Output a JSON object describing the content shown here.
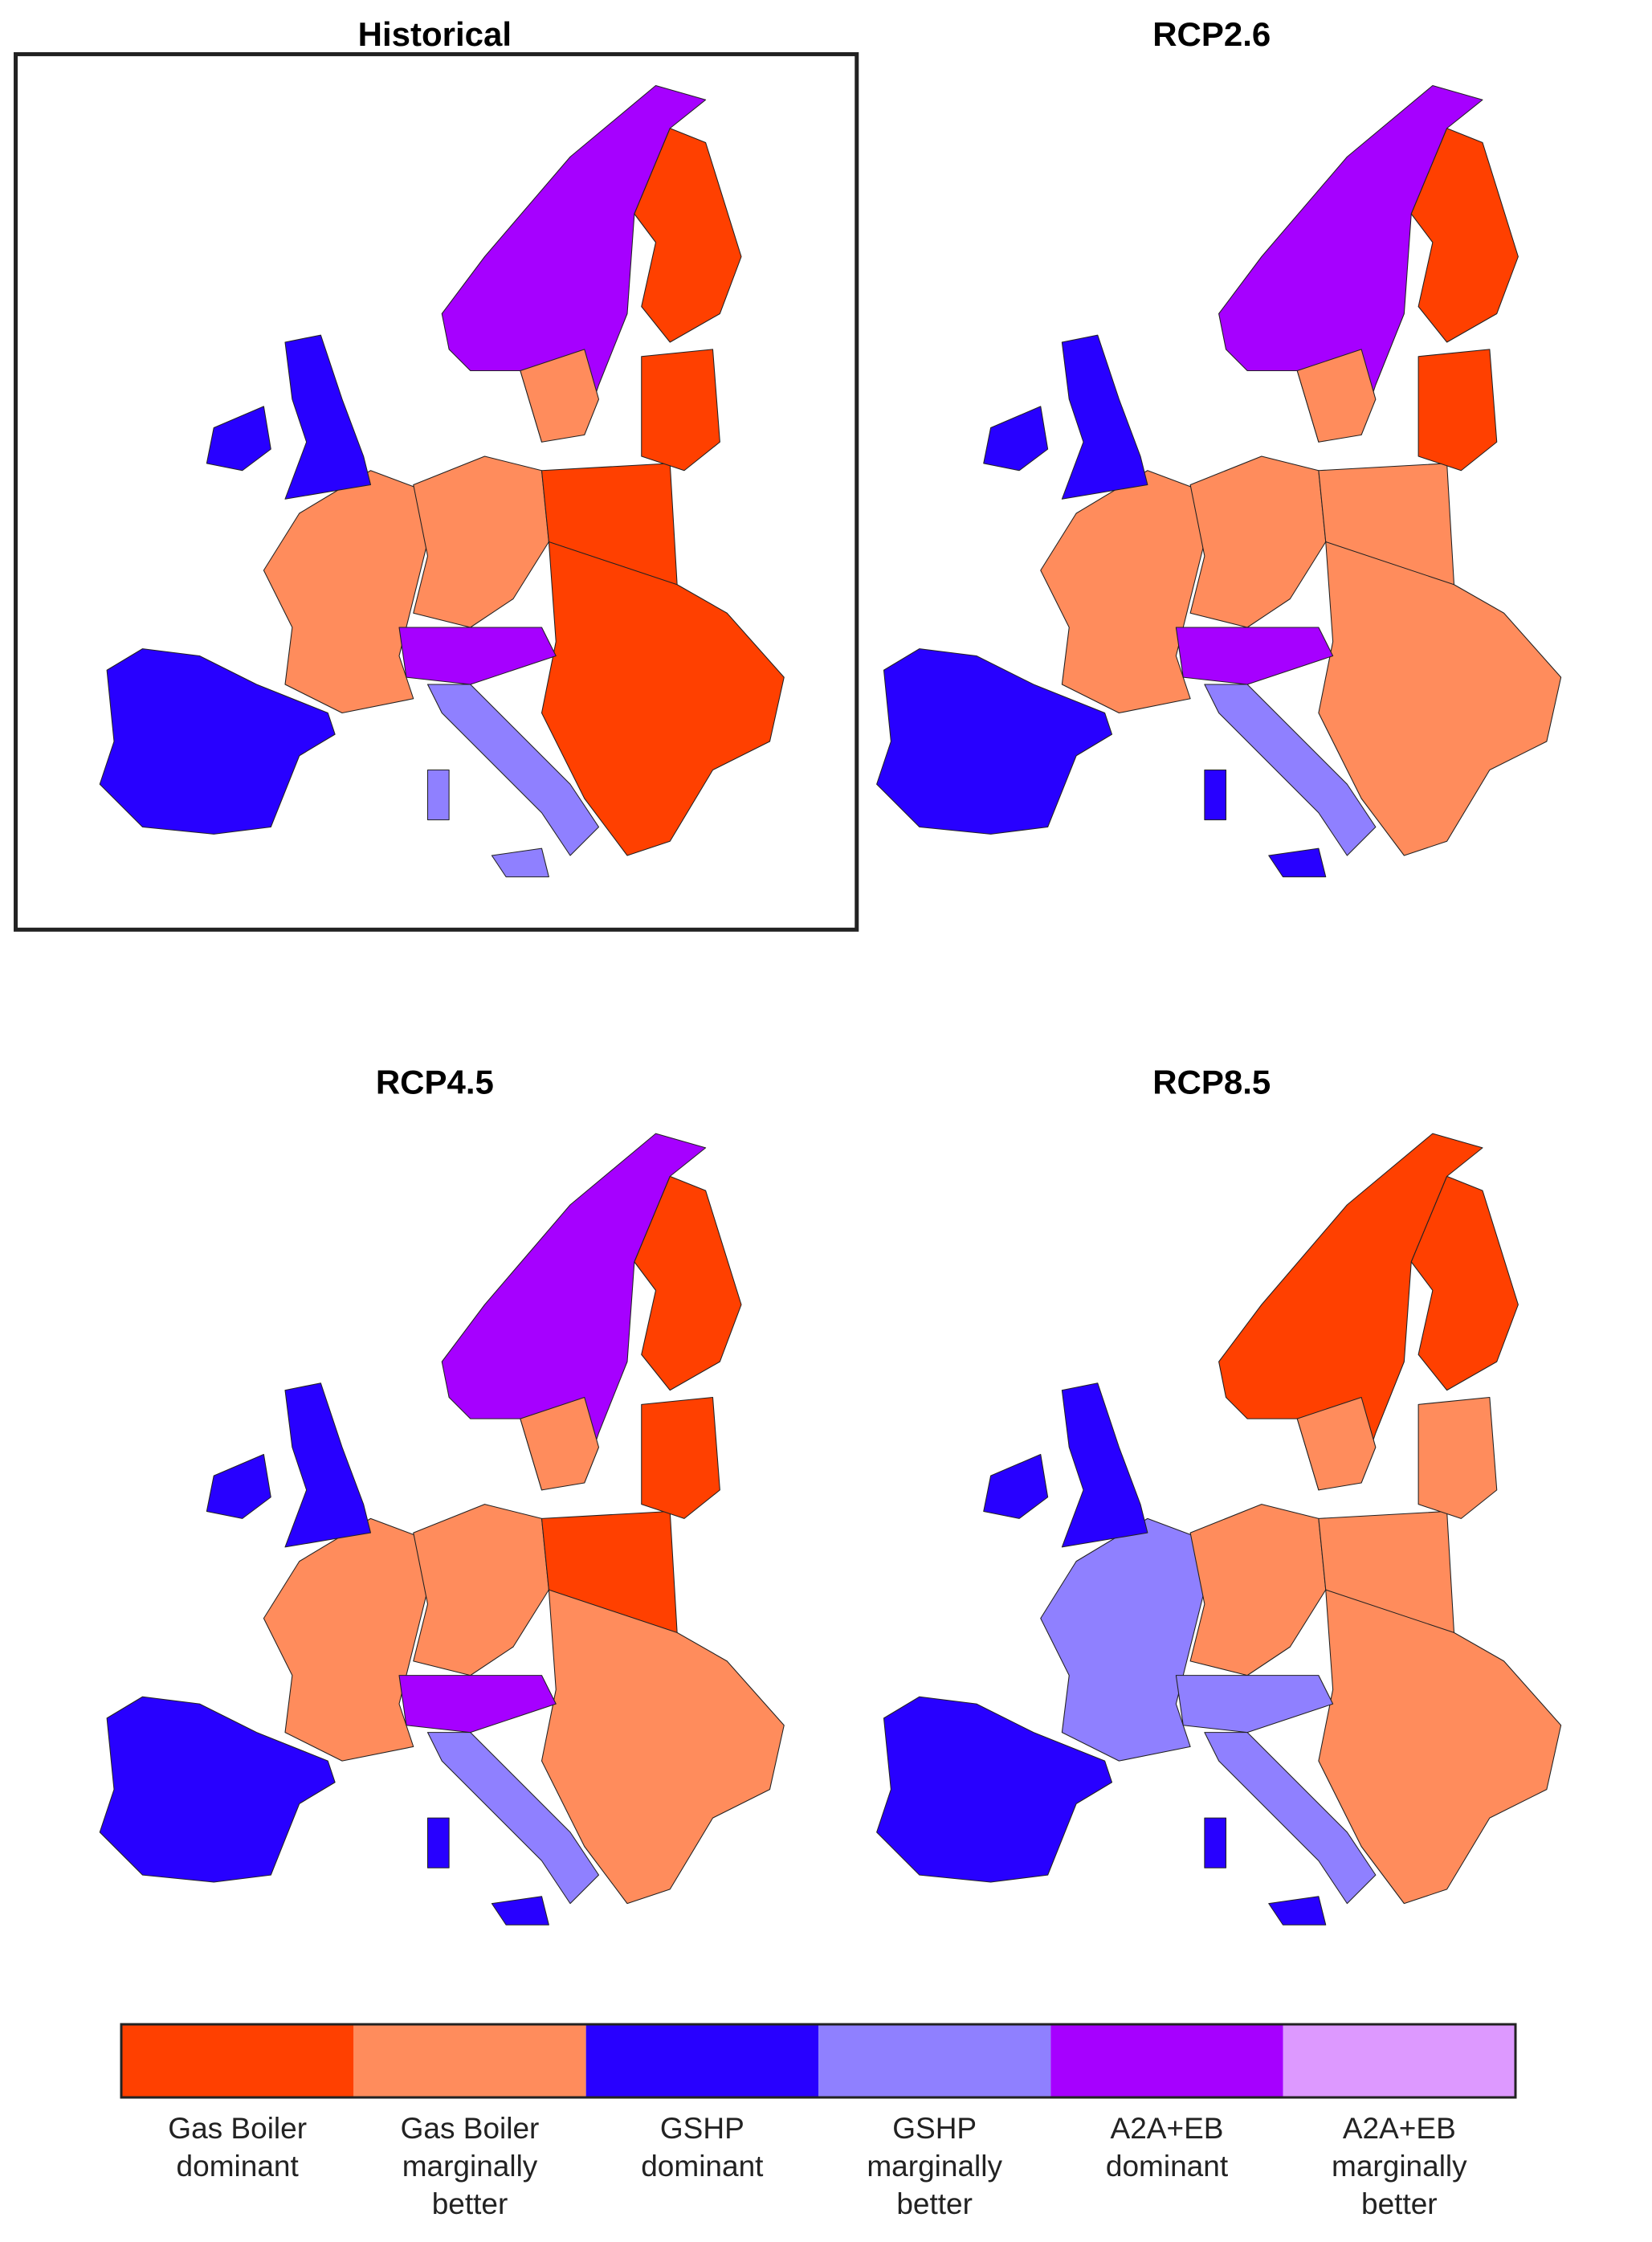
{
  "panels": [
    {
      "title": "Historical",
      "framed": true
    },
    {
      "title": "RCP2.6",
      "framed": false
    },
    {
      "title": "RCP4.5",
      "framed": false
    },
    {
      "title": "RCP8.5",
      "framed": false
    }
  ],
  "legend": {
    "items": [
      {
        "label": [
          "Gas Boiler",
          "dominant"
        ],
        "color": "#ff4000"
      },
      {
        "label": [
          "Gas Boiler",
          "marginally",
          "better"
        ],
        "color": "#ff8c5c"
      },
      {
        "label": [
          "GSHP",
          "dominant"
        ],
        "color": "#2800ff"
      },
      {
        "label": [
          "GSHP",
          "marginally",
          "better"
        ],
        "color": "#8f80ff"
      },
      {
        "label": [
          "A2A+EB",
          "dominant"
        ],
        "color": "#a600ff"
      },
      {
        "label": [
          "A2A+EB",
          "marginally",
          "better"
        ],
        "color": "#dd99ff"
      }
    ]
  }
}
